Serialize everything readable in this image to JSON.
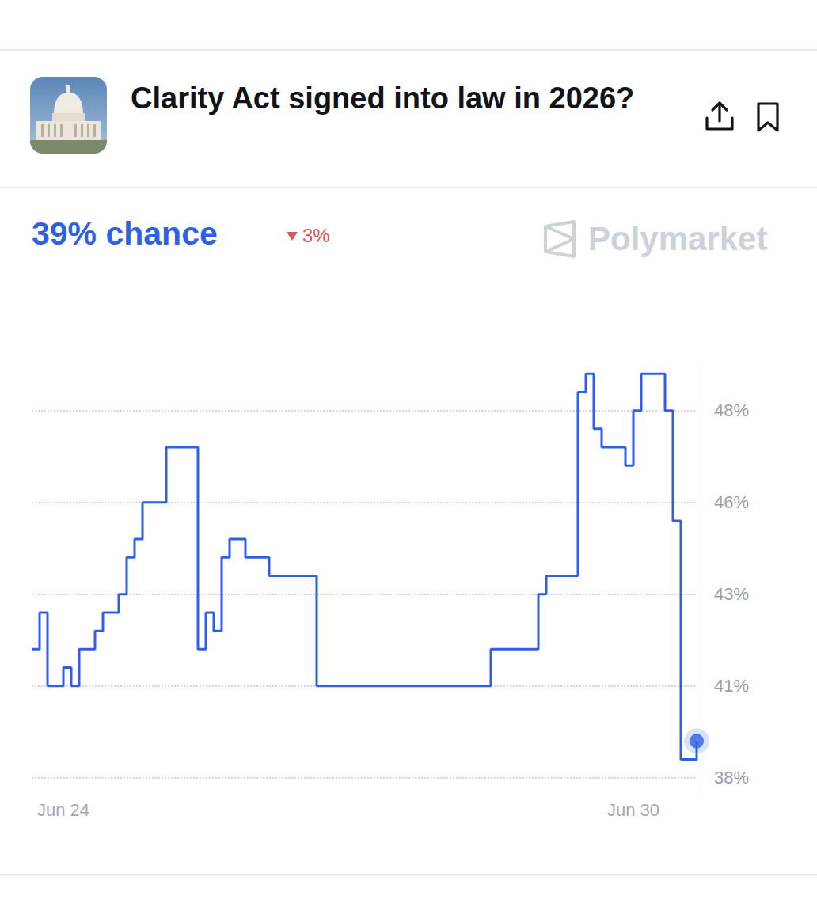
{
  "chart_data": {
    "type": "line",
    "title": "Clarity Act signed into law in 2026?",
    "subtitle": "39% chance",
    "annotations": [
      "3%",
      "Polymarket"
    ],
    "categories": [
      null,
      null,
      null,
      null,
      "Jun 24",
      null,
      null,
      null,
      null,
      null,
      null,
      null,
      null,
      null,
      null,
      null,
      null,
      null,
      null,
      null,
      null,
      null,
      null,
      null,
      null,
      null,
      null,
      null,
      null,
      null,
      null,
      null,
      null,
      null,
      null,
      null,
      null,
      null,
      null,
      null,
      null,
      null,
      null,
      null,
      null,
      null,
      null,
      null,
      null,
      null,
      null,
      null,
      null,
      null,
      null,
      null,
      null,
      null,
      null,
      null,
      null,
      null,
      null,
      null,
      null,
      null,
      null,
      null,
      null,
      null,
      null,
      null,
      null,
      null,
      null,
      null,
      "Jun 30",
      null,
      null,
      null,
      null,
      null,
      null,
      null,
      null
    ],
    "values": [
      41.5,
      42.5,
      40.5,
      40.5,
      41,
      40.5,
      41.5,
      41.5,
      42,
      42.5,
      42.5,
      43,
      44,
      44.5,
      45.5,
      45.5,
      45.5,
      47,
      47,
      47,
      47,
      41.5,
      42.5,
      42,
      44,
      44.5,
      44.5,
      44,
      44,
      44,
      43.5,
      43.5,
      43.5,
      43.5,
      43.5,
      43.5,
      40.5,
      40.5,
      40.5,
      40.5,
      40.5,
      40.5,
      40.5,
      40.5,
      40.5,
      40.5,
      40.5,
      40.5,
      40.5,
      40.5,
      40.5,
      40.5,
      40.5,
      40.5,
      40.5,
      40.5,
      40.5,
      40.5,
      41.5,
      41.5,
      41.5,
      41.5,
      41.5,
      41.5,
      43,
      43.5,
      43.5,
      43.5,
      43.5,
      48.5,
      49,
      47.5,
      47,
      47,
      47,
      46.5,
      48,
      49,
      49,
      49,
      48,
      45,
      38.5,
      38.5,
      39
    ],
    "color": "#2f5fe3",
    "ylim": [
      37.5,
      49.5
    ],
    "yticks": [
      {
        "value": 38,
        "label": "38%"
      },
      {
        "value": 40.5,
        "label": "41%"
      },
      {
        "value": 43,
        "label": "43%"
      },
      {
        "value": 45.5,
        "label": "46%"
      },
      {
        "value": 48,
        "label": "48%"
      }
    ],
    "grid": true
  }
}
